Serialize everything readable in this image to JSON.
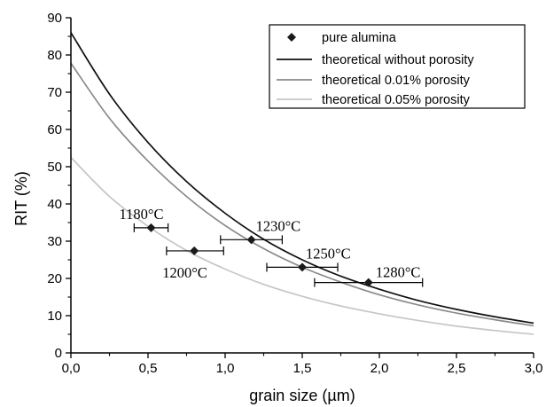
{
  "chart_data": {
    "type": "scatter",
    "xlabel": "grain size (µm)",
    "ylabel": "RIT (%)",
    "xlim": [
      0,
      3.0
    ],
    "ylim": [
      0,
      90
    ],
    "x_ticks": [
      "0,0",
      "0,5",
      "1,0",
      "1,5",
      "2,0",
      "2,5",
      "3,0"
    ],
    "y_ticks": [
      "0",
      "10",
      "20",
      "30",
      "40",
      "50",
      "60",
      "70",
      "80",
      "90"
    ],
    "grid": false,
    "legend_position": "top-right",
    "legend": [
      {
        "label": "pure alumina",
        "marker": "diamond",
        "color": "#1a1a1a"
      },
      {
        "label": "theoretical without porosity",
        "color": "#111111"
      },
      {
        "label": "theoretical 0.01% porosity",
        "color": "#8a8a8a"
      },
      {
        "label": "theoretical 0.05% porosity",
        "color": "#c6c6c6"
      }
    ],
    "points": {
      "name": "pure alumina",
      "data": [
        {
          "x": 0.52,
          "y": 33.6,
          "xerr_low": 0.11,
          "xerr_high": 0.11,
          "label": "1180°C"
        },
        {
          "x": 0.8,
          "y": 27.4,
          "xerr_low": 0.18,
          "xerr_high": 0.19,
          "label": "1200°C"
        },
        {
          "x": 1.17,
          "y": 30.4,
          "xerr_low": 0.2,
          "xerr_high": 0.2,
          "label": "1230°C"
        },
        {
          "x": 1.5,
          "y": 23.0,
          "xerr_low": 0.23,
          "xerr_high": 0.23,
          "label": "1250°C"
        },
        {
          "x": 1.93,
          "y": 18.9,
          "xerr_low": 0.35,
          "xerr_high": 0.35,
          "label": "1280°C"
        }
      ]
    },
    "series": [
      {
        "name": "theoretical without porosity",
        "color": "#111111",
        "x": [
          0,
          0.25,
          0.5,
          0.75,
          1.0,
          1.25,
          1.5,
          1.75,
          2.0,
          2.25,
          2.5,
          2.75,
          3.0
        ],
        "y": [
          86.0,
          69.5,
          56.5,
          46.0,
          37.5,
          30.5,
          25.0,
          20.6,
          17.1,
          14.1,
          11.7,
          9.7,
          8.0
        ]
      },
      {
        "name": "theoretical 0.01% porosity",
        "color": "#8a8a8a",
        "x": [
          0,
          0.25,
          0.5,
          0.75,
          1.0,
          1.25,
          1.5,
          1.75,
          2.0,
          2.25,
          2.5,
          2.75,
          3.0
        ],
        "y": [
          77.8,
          63.0,
          51.5,
          42.0,
          34.2,
          28.0,
          23.0,
          19.0,
          15.6,
          12.9,
          10.7,
          8.9,
          7.3
        ]
      },
      {
        "name": "theoretical 0.05% porosity",
        "color": "#c6c6c6",
        "x": [
          0,
          0.25,
          0.5,
          0.75,
          1.0,
          1.25,
          1.5,
          1.75,
          2.0,
          2.25,
          2.5,
          2.75,
          3.0
        ],
        "y": [
          52.5,
          42.0,
          34.0,
          27.5,
          22.5,
          18.4,
          15.2,
          12.6,
          10.5,
          8.7,
          7.2,
          6.0,
          5.0
        ]
      }
    ]
  }
}
